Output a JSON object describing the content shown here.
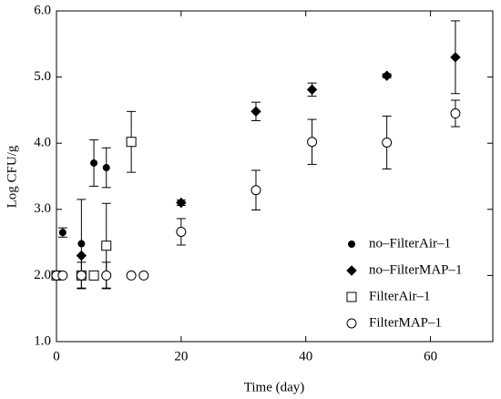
{
  "chart_data": {
    "type": "scatter",
    "x_label": "Time (day)",
    "y_label": "Log CFU/g",
    "xlim": [
      0,
      70
    ],
    "ylim": [
      1.0,
      6.0
    ],
    "xticks": [
      0,
      20,
      40,
      60
    ],
    "yticks": [
      {
        "value": 1.0,
        "label": "1.0"
      },
      {
        "value": 2.0,
        "label": "2.0"
      },
      {
        "value": 3.0,
        "label": "3.0"
      },
      {
        "value": 4.0,
        "label": "4.0"
      },
      {
        "value": 5.0,
        "label": "5.0"
      },
      {
        "value": 6.0,
        "label": "6.0"
      }
    ],
    "legend": "lower right",
    "series": [
      {
        "name": "no–FilterAir–1",
        "color": "#000000",
        "marker": "circle",
        "filled": true,
        "x": [
          0,
          1,
          4,
          6,
          8
        ],
        "values": [
          2.0,
          2.65,
          2.48,
          3.7,
          3.63
        ],
        "errors": [
          null,
          0.07,
          0.67,
          0.35,
          0.3
        ]
      },
      {
        "name": "no–FilterMAP–1",
        "color": "#000000",
        "marker": "diamond",
        "filled": true,
        "x": [
          4,
          20,
          32,
          41,
          53,
          64
        ],
        "values": [
          2.3,
          3.1,
          4.48,
          4.81,
          5.02,
          5.3
        ],
        "errors": [
          null,
          0.04,
          0.14,
          0.1,
          0.03,
          0.55
        ]
      },
      {
        "name": "FilterAir–1",
        "color": "#000000",
        "marker": "square",
        "filled": false,
        "x": [
          0,
          4,
          6,
          8,
          12
        ],
        "values": [
          2.0,
          2.0,
          2.0,
          2.45,
          4.02
        ],
        "errors": [
          null,
          0.2,
          null,
          0.64,
          0.46
        ]
      },
      {
        "name": "FilterMAP–1",
        "color": "#000000",
        "marker": "circle",
        "filled": false,
        "x": [
          0,
          1,
          4,
          8,
          12,
          14,
          20,
          32,
          41,
          53,
          64
        ],
        "values": [
          2.0,
          2.0,
          2.0,
          2.0,
          2.0,
          2.0,
          2.66,
          3.29,
          4.02,
          4.01,
          4.45
        ],
        "errors": [
          null,
          null,
          null,
          0.2,
          null,
          null,
          0.2,
          0.3,
          0.34,
          0.4,
          0.2
        ]
      }
    ]
  }
}
